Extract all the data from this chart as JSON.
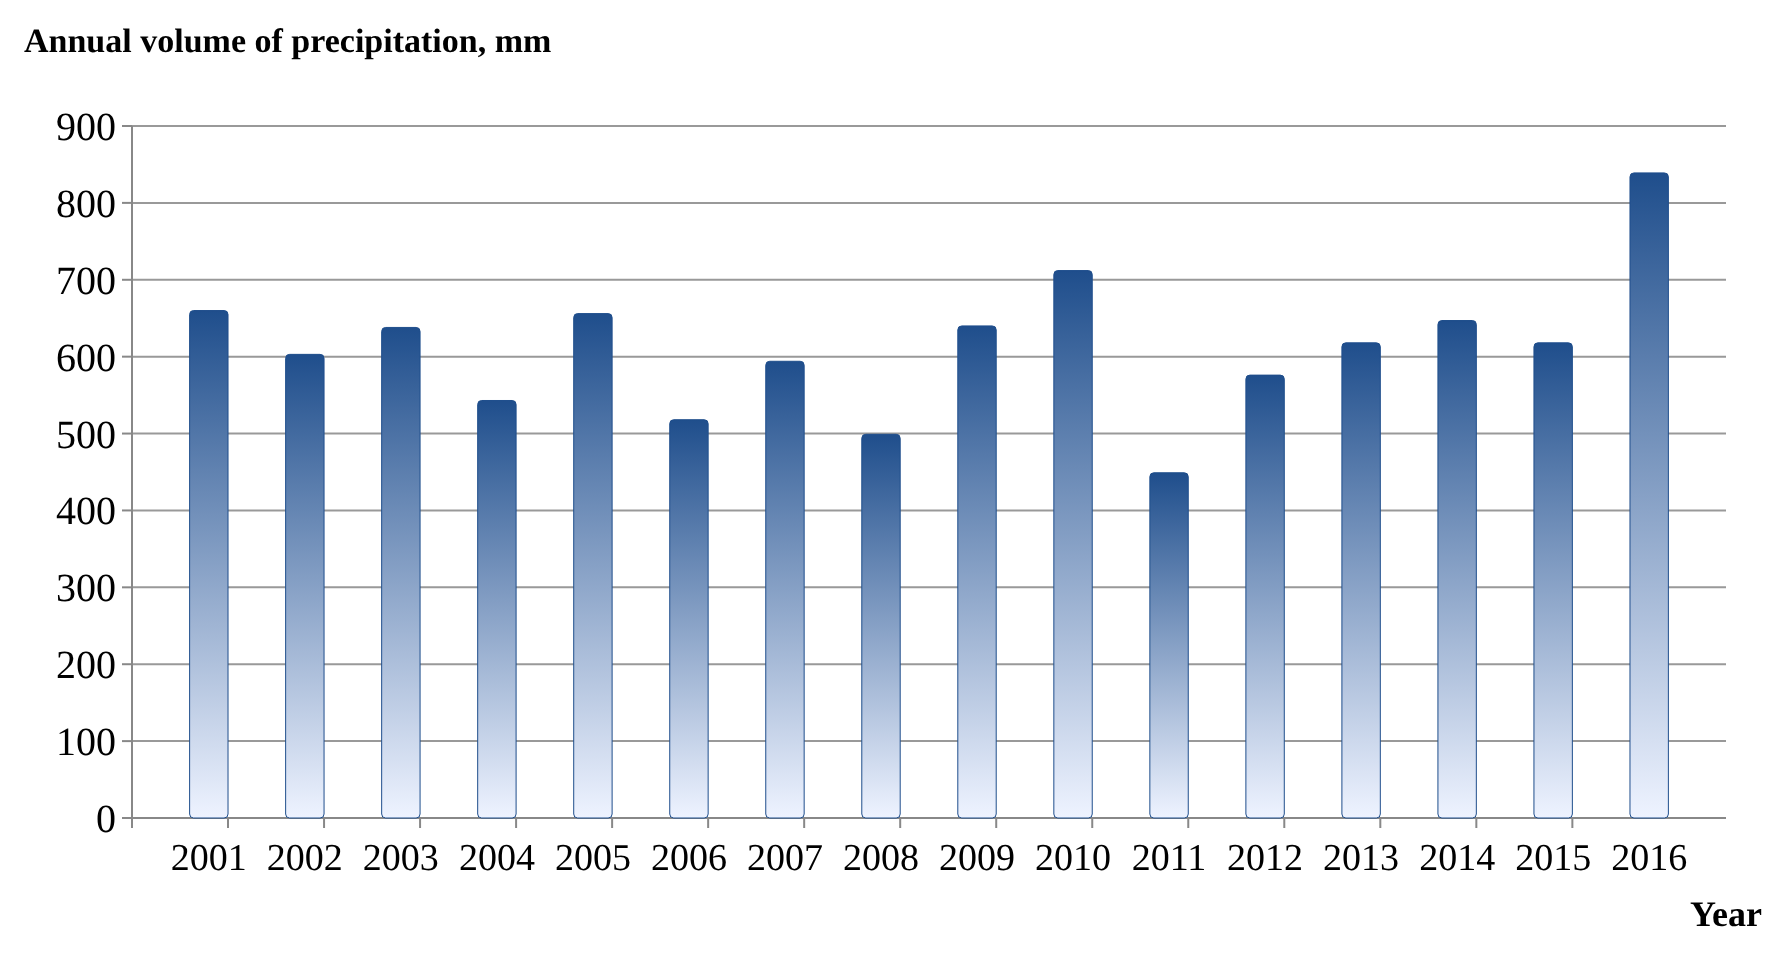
{
  "chart_data": {
    "type": "bar",
    "title": "Annual volume of precipitation, mm",
    "xlabel": "Year",
    "categories": [
      "2001",
      "2002",
      "2003",
      "2004",
      "2005",
      "2006",
      "2007",
      "2008",
      "2009",
      "2010",
      "2011",
      "2012",
      "2013",
      "2014",
      "2015",
      "2016"
    ],
    "values": [
      660,
      603,
      638,
      543,
      656,
      518,
      594,
      499,
      640,
      712,
      449,
      576,
      618,
      647,
      618,
      839
    ],
    "color": "#1f4e8c",
    "ylim": [
      0,
      900
    ],
    "yticks": [
      0,
      100,
      200,
      300,
      400,
      500,
      600,
      700,
      800,
      900
    ],
    "grid": "y"
  }
}
